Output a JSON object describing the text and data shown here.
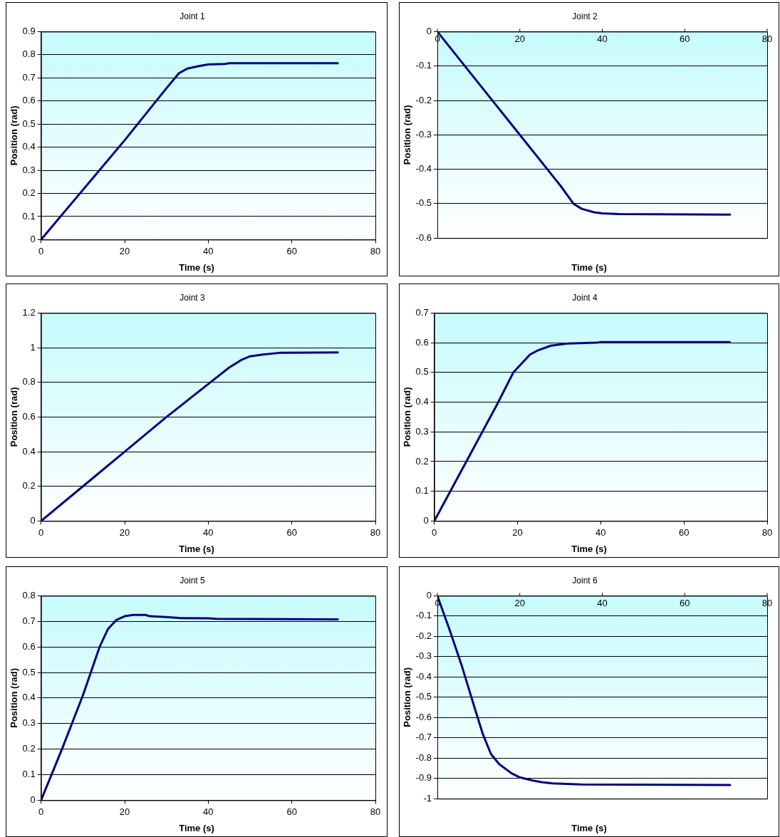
{
  "chart_data": [
    {
      "type": "line",
      "title": "Joint 1",
      "xlabel": "Time (s)",
      "ylabel": "Position (rad)",
      "color": "#000080",
      "grid": "y",
      "marker": "none",
      "xlim": [
        0,
        80
      ],
      "xticks": [
        0,
        20,
        40,
        60,
        80
      ],
      "ylim": [
        0,
        0.9
      ],
      "yticks": [
        0,
        0.1,
        0.2,
        0.3,
        0.4,
        0.5,
        0.6,
        0.7,
        0.8,
        0.9
      ],
      "x": [
        0,
        10,
        20,
        30,
        33,
        35,
        38,
        40,
        44,
        45,
        71
      ],
      "values": [
        0,
        0.215,
        0.43,
        0.655,
        0.72,
        0.74,
        0.752,
        0.758,
        0.76,
        0.763,
        0.763
      ]
    },
    {
      "type": "line",
      "title": "Joint 2",
      "xlabel": "Time (s)",
      "ylabel": "Position (rad)",
      "color": "#000080",
      "grid": "y",
      "marker": "none",
      "xlim": [
        0,
        80
      ],
      "xticks": [
        0,
        20,
        40,
        60,
        80
      ],
      "ylim": [
        -0.6,
        0
      ],
      "yticks": [
        -0.6,
        -0.5,
        -0.4,
        -0.3,
        -0.2,
        -0.1,
        0
      ],
      "x": [
        0,
        10,
        20,
        30,
        33,
        35,
        38,
        40,
        44,
        71
      ],
      "values": [
        0,
        -0.15,
        -0.3,
        -0.45,
        -0.5,
        -0.515,
        -0.525,
        -0.528,
        -0.53,
        -0.532
      ]
    },
    {
      "type": "line",
      "title": "Joint 3",
      "xlabel": "Time (s)",
      "ylabel": "Position (rad)",
      "color": "#000080",
      "grid": "y",
      "marker": "none",
      "xlim": [
        0,
        80
      ],
      "xticks": [
        0,
        20,
        40,
        60,
        80
      ],
      "ylim": [
        0,
        1.2
      ],
      "yticks": [
        0,
        0.2,
        0.4,
        0.6,
        0.8,
        1,
        1.2
      ],
      "x": [
        0,
        10,
        20,
        30,
        40,
        45,
        48,
        50,
        53,
        57,
        71
      ],
      "values": [
        0,
        0.2,
        0.4,
        0.6,
        0.79,
        0.885,
        0.93,
        0.95,
        0.96,
        0.97,
        0.973
      ]
    },
    {
      "type": "line",
      "title": "Joint 4",
      "xlabel": "Time (s)",
      "ylabel": "Position (rad)",
      "color": "#000080",
      "grid": "y",
      "marker": "none",
      "xlim": [
        0,
        80
      ],
      "xticks": [
        0,
        20,
        40,
        60,
        80
      ],
      "ylim": [
        0,
        0.7
      ],
      "yticks": [
        0,
        0.1,
        0.2,
        0.3,
        0.4,
        0.5,
        0.6,
        0.7
      ],
      "x": [
        0,
        5,
        10,
        15,
        19,
        21,
        23,
        25,
        28,
        32,
        39,
        40,
        71
      ],
      "values": [
        0,
        0.13,
        0.26,
        0.39,
        0.5,
        0.53,
        0.56,
        0.575,
        0.59,
        0.597,
        0.6,
        0.602,
        0.602
      ]
    },
    {
      "type": "line",
      "title": "Joint 5",
      "xlabel": "Time (s)",
      "ylabel": "Position (rad)",
      "color": "#000080",
      "grid": "y",
      "marker": "none",
      "xlim": [
        0,
        80
      ],
      "xticks": [
        0,
        20,
        40,
        60,
        80
      ],
      "ylim": [
        0,
        0.8
      ],
      "yticks": [
        0,
        0.1,
        0.2,
        0.3,
        0.4,
        0.5,
        0.6,
        0.7,
        0.8
      ],
      "x": [
        0,
        5,
        10,
        14,
        16,
        18,
        20,
        22,
        25,
        26,
        30,
        33,
        40,
        42,
        71
      ],
      "values": [
        0,
        0.2,
        0.41,
        0.6,
        0.67,
        0.705,
        0.72,
        0.725,
        0.725,
        0.72,
        0.717,
        0.713,
        0.712,
        0.71,
        0.708
      ]
    },
    {
      "type": "line",
      "title": "Joint 6",
      "xlabel": "Time (s)",
      "ylabel": "Position (rad)",
      "color": "#000080",
      "grid": "y",
      "marker": "none",
      "xlim": [
        0,
        80
      ],
      "xticks": [
        0,
        20,
        40,
        60,
        80
      ],
      "ylim": [
        -1,
        0
      ],
      "yticks": [
        -1,
        -0.9,
        -0.8,
        -0.7,
        -0.6,
        -0.5,
        -0.4,
        -0.3,
        -0.2,
        -0.1,
        0
      ],
      "x": [
        0,
        3,
        6,
        9,
        11,
        13,
        15,
        18,
        20,
        23,
        25,
        28,
        35,
        71
      ],
      "values": [
        0,
        -0.17,
        -0.35,
        -0.55,
        -0.68,
        -0.78,
        -0.83,
        -0.875,
        -0.895,
        -0.91,
        -0.918,
        -0.925,
        -0.93,
        -0.933
      ]
    }
  ]
}
